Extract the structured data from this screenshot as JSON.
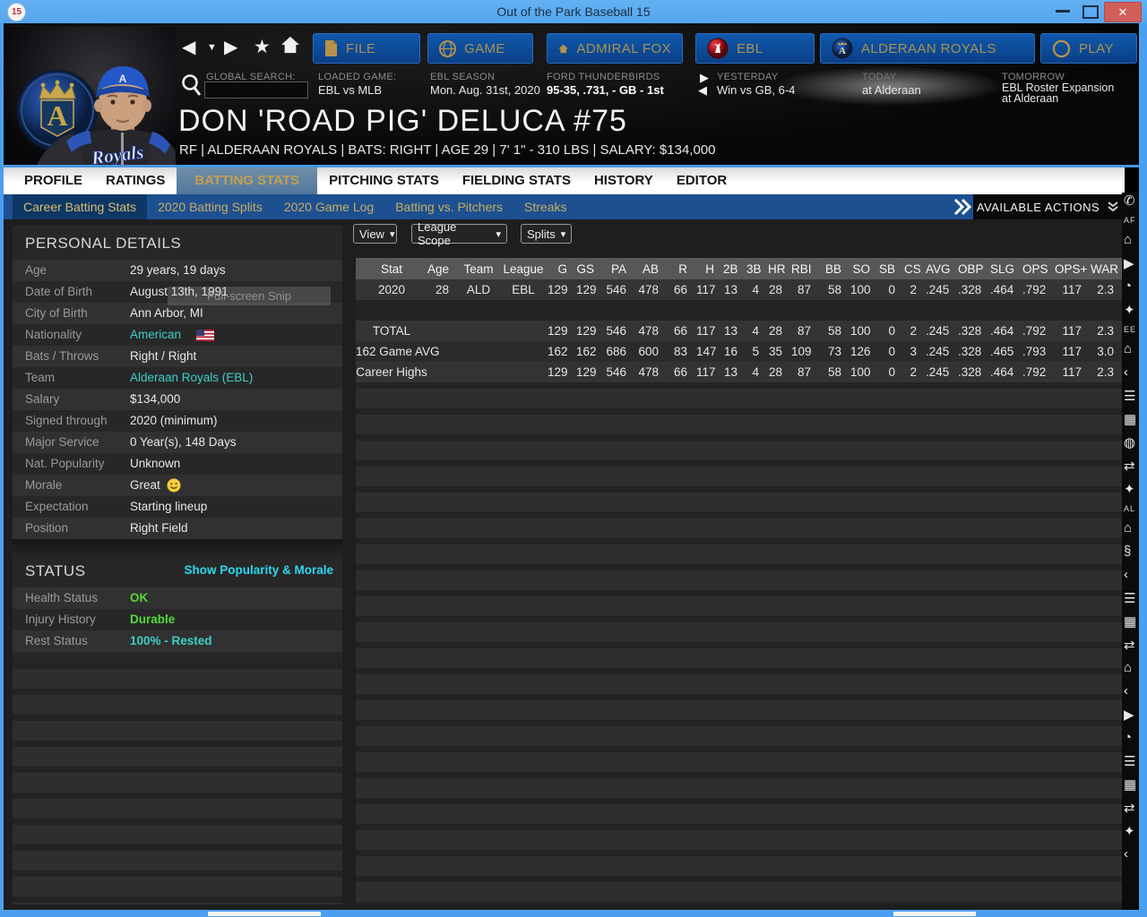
{
  "window": {
    "icon_badge": "15",
    "title": "Out of the Park Baseball 15"
  },
  "nav": {
    "back": "◀",
    "recent": "▼",
    "forward": "▶",
    "favorite": "★",
    "buttons": [
      "FILE",
      "GAME",
      "ADMIRAL FOX",
      "EBL",
      "ALDERAAN ROYALS",
      "PLAY"
    ]
  },
  "info": {
    "search_label": "GLOBAL SEARCH:",
    "loaded_label": "LOADED GAME:",
    "loaded_value": "EBL vs MLB",
    "season_label": "EBL SEASON",
    "season_value": "Mon. Aug. 31st, 2020",
    "team_label": "FORD THUNDERBIRDS",
    "team_value": "95-35, .731, - GB - 1st",
    "yesterday_label": "YESTERDAY",
    "yesterday_value": "Win vs GB, 6-4",
    "today_label": "TODAY",
    "today_value": "at Alderaan",
    "tomorrow_label": "TOMORROW",
    "tomorrow_line1": "EBL Roster Expansion",
    "tomorrow_line2": "at Alderaan"
  },
  "player": {
    "name": "DON 'ROAD PIG' DELUCA  #75",
    "subtitle": "RF | ALDERAAN ROYALS | BATS: RIGHT | AGE 29 | 7' 1\" - 310 LBS | SALARY: $134,000",
    "jersey": "Royals"
  },
  "tabs": [
    "PROFILE",
    "RATINGS",
    "BATTING STATS",
    "PITCHING STATS",
    "FIELDING STATS",
    "HISTORY",
    "EDITOR"
  ],
  "subtabs": [
    "Career Batting Stats",
    "2020 Batting Splits",
    "2020 Game Log",
    "Batting vs. Pitchers",
    "Streaks"
  ],
  "actions": {
    "label": "AVAILABLE ACTIONS"
  },
  "filters": {
    "view": "View",
    "league_scope": "League Scope",
    "splits": "Splits"
  },
  "pd": {
    "title": "PERSONAL DETAILS",
    "rows": [
      {
        "label": "Age",
        "value": "29 years, 19 days"
      },
      {
        "label": "Date of Birth",
        "value": "August 13th, 1991"
      },
      {
        "label": "City of Birth",
        "value": "Ann Arbor, MI"
      },
      {
        "label": "Nationality",
        "value": "American"
      },
      {
        "label": "Bats / Throws",
        "value": "Right / Right"
      },
      {
        "label": "Team",
        "value": "Alderaan Royals (EBL)"
      },
      {
        "label": "Salary",
        "value": "$134,000"
      },
      {
        "label": "Signed through",
        "value": "2020 (minimum)"
      },
      {
        "label": "Major Service",
        "value": "0 Year(s), 148 Days"
      },
      {
        "label": "Nat. Popularity",
        "value": "Unknown"
      },
      {
        "label": "Morale",
        "value": "Great"
      },
      {
        "label": "Expectation",
        "value": "Starting lineup"
      },
      {
        "label": "Position",
        "value": "Right Field"
      }
    ]
  },
  "status": {
    "title": "STATUS",
    "link": "Show Popularity & Morale",
    "rows": [
      {
        "label": "Health Status",
        "value": "OK"
      },
      {
        "label": "Injury History",
        "value": "Durable"
      },
      {
        "label": "Rest Status",
        "value": "100% - Rested"
      }
    ]
  },
  "snip": {
    "label": "Full-screen Snip"
  },
  "table": {
    "headers": [
      "Stat",
      "Age",
      "Team",
      "League",
      "G",
      "GS",
      "PA",
      "AB",
      "R",
      "H",
      "2B",
      "3B",
      "HR",
      "RBI",
      "BB",
      "SO",
      "SB",
      "CS",
      "AVG",
      "OBP",
      "SLG",
      "OPS",
      "OPS+",
      "WAR"
    ],
    "rows": [
      {
        "cells": [
          "2020",
          "28",
          "ALD",
          "EBL",
          "129",
          "129",
          "546",
          "478",
          "66",
          "117",
          "13",
          "4",
          "28",
          "87",
          "58",
          "100",
          "0",
          "2",
          ".245",
          ".328",
          ".464",
          ".792",
          "117",
          "2.3"
        ]
      },
      {
        "cells": [
          "TOTAL",
          "",
          "",
          "",
          "129",
          "129",
          "546",
          "478",
          "66",
          "117",
          "13",
          "4",
          "28",
          "87",
          "58",
          "100",
          "0",
          "2",
          ".245",
          ".328",
          ".464",
          ".792",
          "117",
          "2.3"
        ]
      },
      {
        "cells": [
          "162 Game AVG",
          "",
          "",
          "",
          "162",
          "162",
          "686",
          "600",
          "83",
          "147",
          "16",
          "5",
          "35",
          "109",
          "73",
          "126",
          "0",
          "3",
          ".245",
          ".328",
          ".465",
          ".793",
          "117",
          "3.0"
        ]
      },
      {
        "cells": [
          "Career Highs",
          "",
          "",
          "",
          "129",
          "129",
          "546",
          "478",
          "66",
          "117",
          "13",
          "4",
          "28",
          "87",
          "58",
          "100",
          "0",
          "2",
          ".245",
          ".328",
          ".464",
          ".792",
          "117",
          "2.3"
        ]
      }
    ]
  },
  "edge": {
    "items": [
      "✆",
      "AF",
      "⌂",
      "▶",
      "◔",
      "✦",
      "EE",
      "⌂",
      "‹",
      "☰",
      "▦",
      "◍",
      "⇄",
      "✦",
      "AL",
      "⌂",
      "§",
      "‹",
      "☰",
      "▦",
      "⇄",
      "⌂",
      "‹",
      "▶",
      "◔",
      "☰",
      "▦",
      "⇄",
      "✦",
      "‹"
    ]
  }
}
